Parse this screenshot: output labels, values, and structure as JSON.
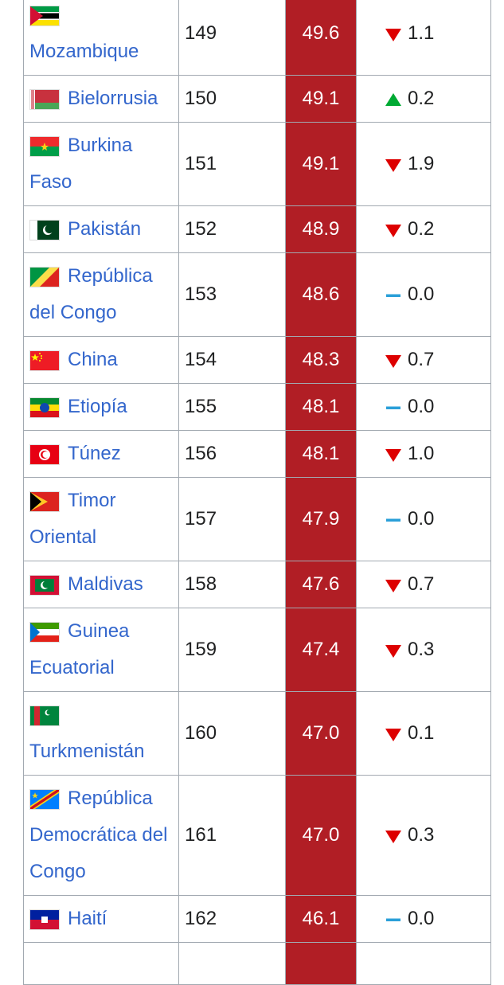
{
  "table": {
    "rows": [
      [
        "Mozambique",
        "149",
        "49.6",
        "1.1"
      ],
      [
        "Bielorrusia",
        "150",
        "49.1",
        "0.2"
      ],
      [
        "Burkina Faso",
        "151",
        "49.1",
        "1.9"
      ],
      [
        "Pakistán",
        "152",
        "48.9",
        "0.2"
      ],
      [
        "República del Congo",
        "153",
        "48.6",
        "0.0"
      ],
      [
        "China",
        "154",
        "48.3",
        "0.7"
      ],
      [
        "Etiopía",
        "155",
        "48.1",
        "0.0"
      ],
      [
        "Túnez",
        "156",
        "48.1",
        "1.0"
      ],
      [
        "Timor Oriental",
        "157",
        "47.9",
        "0.0"
      ],
      [
        "Maldivas",
        "158",
        "47.6",
        "0.7"
      ],
      [
        "Guinea Ecuatorial",
        "159",
        "47.4",
        "0.3"
      ],
      [
        "Turkmenistán",
        "160",
        "47.0",
        "0.1"
      ],
      [
        "República Democrática del Congo",
        "161",
        "47.0",
        "0.3"
      ],
      [
        "Haití",
        "162",
        "46.1",
        "0.0"
      ]
    ]
  }
}
